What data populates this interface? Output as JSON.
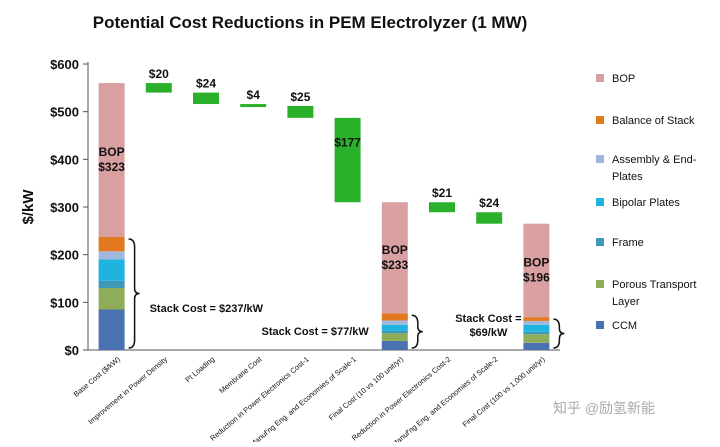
{
  "chart_data": {
    "type": "bar",
    "title": "Potential Cost Reductions in PEM Electrolyzer (1 MW)",
    "ylabel": "$/kW",
    "ylim": [
      0,
      600
    ],
    "yticks": [
      "$0",
      "$100",
      "$200",
      "$300",
      "$400",
      "$500",
      "$600"
    ],
    "grid": false,
    "legend_position": "right",
    "categories": [
      "Base Cost ($/kW)",
      "Improvement in Power Density",
      "Pt Loading",
      "Membrane Cost",
      "Reduction in Power Electronics Cost-1",
      "Manuf'ng Eng. and Economies of Scale-1",
      "Final Cost (10 vs 100 unit/yr)",
      "Reduction in Power Electronics Cost-2",
      "Manuf'ng Eng. and Economies of Scale-2",
      "Final Cost (100 vs 1,000 unit/yr)"
    ],
    "components": [
      {
        "name": "CCM",
        "color": "#4a72b0"
      },
      {
        "name": "Porous Transport Layer",
        "color": "#8fad58"
      },
      {
        "name": "Frame",
        "color": "#3f98b6"
      },
      {
        "name": "Bipolar Plates",
        "color": "#1fb4e0"
      },
      {
        "name": "Assembly & End-Plates",
        "color": "#9fb8dc"
      },
      {
        "name": "Balance of Stack",
        "color": "#e2781f"
      },
      {
        "name": "BOP",
        "color": "#d9a0a1"
      }
    ],
    "legend_order": [
      "BOP",
      "Balance of Stack",
      "Assembly & End-Plates",
      "Bipolar Plates",
      "Frame",
      "Porous Transport Layer",
      "CCM"
    ],
    "stacks": [
      {
        "category_index": 0,
        "values": [
          85,
          45,
          15,
          45,
          17,
          30,
          323
        ],
        "label": "BOP\n$323",
        "stack_label": "Stack Cost = $237/kW"
      },
      {
        "category_index": 6,
        "values": [
          19,
          16,
          5,
          13,
          9,
          15,
          233
        ],
        "label": "BOP\n$233",
        "stack_label": "Stack Cost = $77/kW"
      },
      {
        "category_index": 9,
        "values": [
          15,
          18,
          5,
          15,
          8,
          8,
          196
        ],
        "label": "BOP\n$196",
        "stack_label": "Stack Cost =\n$69/kW"
      }
    ],
    "reductions": {
      "color": "#2bb02b",
      "items": [
        {
          "category_index": 1,
          "top": 560,
          "value": 20,
          "label": "$20"
        },
        {
          "category_index": 2,
          "top": 540,
          "value": 24,
          "label": "$24"
        },
        {
          "category_index": 3,
          "top": 516,
          "value": 4,
          "label": "$4"
        },
        {
          "category_index": 4,
          "top": 512,
          "value": 25,
          "label": "$25"
        },
        {
          "category_index": 5,
          "top": 487,
          "value": 177,
          "label": "$177"
        },
        {
          "category_index": 7,
          "top": 310,
          "value": 21,
          "label": "$21"
        },
        {
          "category_index": 8,
          "top": 289,
          "value": 24,
          "label": "$24"
        }
      ]
    }
  },
  "watermark": {
    "text": "知乎 @励氢新能"
  }
}
